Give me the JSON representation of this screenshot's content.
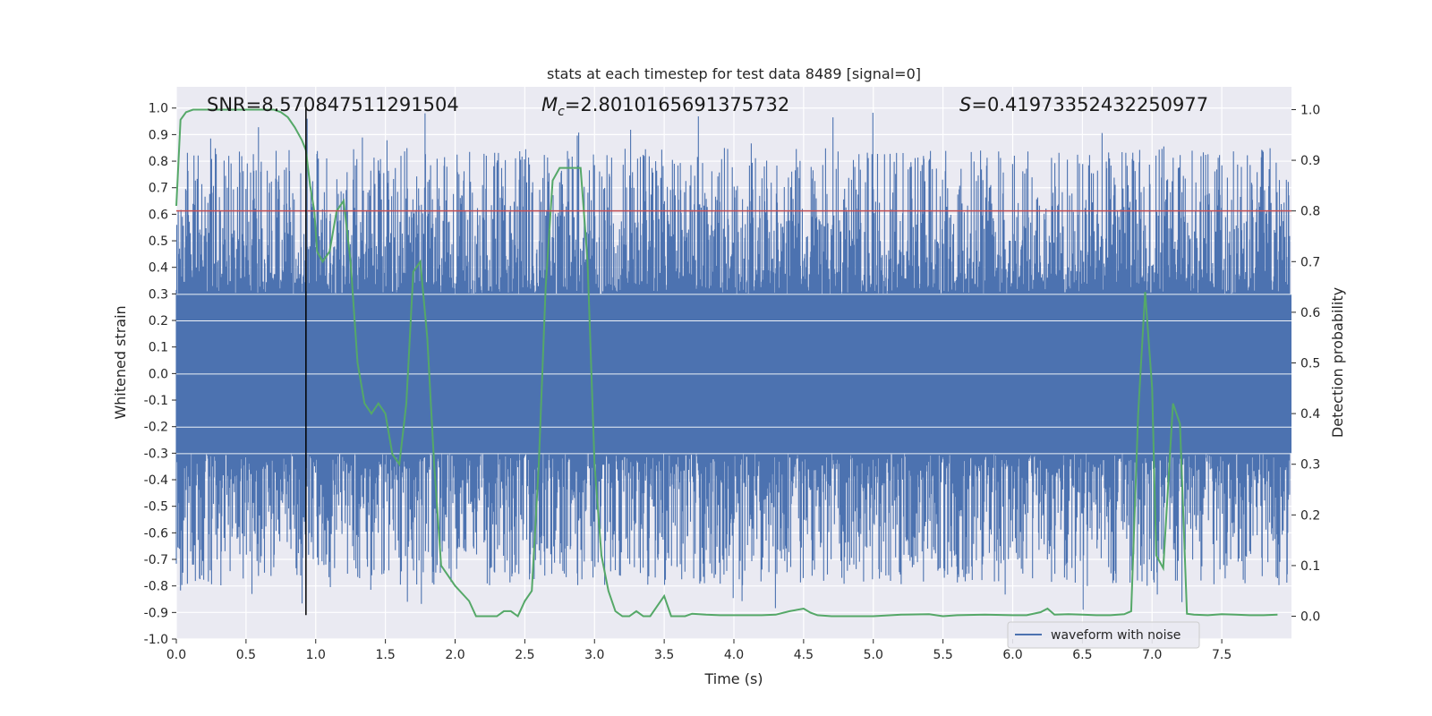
{
  "chart_data": {
    "type": "line",
    "title": "stats at each timestep for test data 8489 [signal=0]",
    "xlabel": "Time (s)",
    "ylabel": "Whitened strain",
    "y2label": "Detection probability",
    "xlim": [
      0,
      8.0
    ],
    "ylim": [
      -1.0,
      1.08
    ],
    "y2lim": [
      -0.045,
      1.045
    ],
    "x_ticks": [
      "0.0",
      "0.5",
      "1.0",
      "1.5",
      "2.0",
      "2.5",
      "3.0",
      "3.5",
      "4.0",
      "4.5",
      "5.0",
      "5.5",
      "6.0",
      "6.5",
      "7.0",
      "7.5"
    ],
    "x_tick_values": [
      0,
      0.5,
      1,
      1.5,
      2,
      2.5,
      3,
      3.5,
      4,
      4.5,
      5,
      5.5,
      6,
      6.5,
      7,
      7.5
    ],
    "y_ticks": [
      "1.0",
      "0.9",
      "0.8",
      "0.7",
      "0.6",
      "0.5",
      "0.4",
      "0.3",
      "0.2",
      "0.1",
      "0.0",
      "-0.1",
      "-0.2",
      "-0.3",
      "-0.4",
      "-0.5",
      "-0.6",
      "-0.7",
      "-0.8",
      "-0.9",
      "-1.0"
    ],
    "y_tick_values": [
      1.0,
      0.9,
      0.8,
      0.7,
      0.6,
      0.5,
      0.4,
      0.3,
      0.2,
      0.1,
      0.0,
      -0.1,
      -0.2,
      -0.3,
      -0.4,
      -0.5,
      -0.6,
      -0.7,
      -0.8,
      -0.9,
      -1.0
    ],
    "y2_ticks": [
      "1.0",
      "0.9",
      "0.8",
      "0.7",
      "0.6",
      "0.5",
      "0.4",
      "0.3",
      "0.2",
      "0.1",
      "0.0"
    ],
    "y2_tick_values": [
      1.0,
      0.9,
      0.8,
      0.7,
      0.6,
      0.5,
      0.4,
      0.3,
      0.2,
      0.1,
      0.0
    ],
    "annotations": {
      "snr": "SNR=8.570847511291504",
      "mc_symbol": "M",
      "mc_subscript": "c",
      "mc_value": "=2.8010165691375732",
      "s_symbol": "S",
      "s_value": "=0.41973352432250977"
    },
    "threshold_y": 0.8,
    "marker_x": 0.93,
    "marker_y_range": [
      -0.91,
      1.0
    ],
    "legend": {
      "label": "waveform with noise",
      "position": "lower-right"
    },
    "grid": true,
    "series": [
      {
        "name": "waveform with noise",
        "axis": "left",
        "style": "noise-band",
        "core_band": [
          -0.3,
          0.3
        ]
      },
      {
        "axis": "right",
        "style": "line",
        "x": [
          0.0,
          0.03,
          0.07,
          0.12,
          0.2,
          0.3,
          0.4,
          0.5,
          0.6,
          0.7,
          0.75,
          0.8,
          0.85,
          0.9,
          0.93,
          0.96,
          0.99,
          1.01,
          1.05,
          1.1,
          1.15,
          1.2,
          1.25,
          1.3,
          1.35,
          1.4,
          1.45,
          1.5,
          1.55,
          1.6,
          1.65,
          1.7,
          1.75,
          1.8,
          1.85,
          1.9,
          2.0,
          2.1,
          2.15,
          2.2,
          2.3,
          2.35,
          2.4,
          2.45,
          2.5,
          2.55,
          2.6,
          2.65,
          2.7,
          2.75,
          2.8,
          2.85,
          2.9,
          2.95,
          3.0,
          3.05,
          3.1,
          3.15,
          3.2,
          3.25,
          3.3,
          3.35,
          3.4,
          3.45,
          3.5,
          3.55,
          3.6,
          3.65,
          3.7,
          3.8,
          3.9,
          4.0,
          4.1,
          4.2,
          4.3,
          4.4,
          4.5,
          4.55,
          4.6,
          4.7,
          5.0,
          5.2,
          5.4,
          5.5,
          5.6,
          5.8,
          6.0,
          6.1,
          6.2,
          6.25,
          6.3,
          6.4,
          6.5,
          6.6,
          6.7,
          6.8,
          6.85,
          6.9,
          6.95,
          7.0,
          7.03,
          7.08,
          7.15,
          7.2,
          7.25,
          7.3,
          7.4,
          7.5,
          7.6,
          7.7,
          7.8,
          7.9
        ],
        "y": [
          0.81,
          0.98,
          0.995,
          1.0,
          1.0,
          1.0,
          1.0,
          1.0,
          1.0,
          1.0,
          0.995,
          0.985,
          0.965,
          0.94,
          0.92,
          0.85,
          0.8,
          0.72,
          0.7,
          0.72,
          0.8,
          0.82,
          0.7,
          0.5,
          0.42,
          0.4,
          0.42,
          0.4,
          0.32,
          0.3,
          0.42,
          0.68,
          0.7,
          0.55,
          0.3,
          0.1,
          0.06,
          0.03,
          0.0,
          0.0,
          0.0,
          0.01,
          0.01,
          0.0,
          0.03,
          0.05,
          0.3,
          0.65,
          0.86,
          0.885,
          0.885,
          0.885,
          0.885,
          0.7,
          0.3,
          0.12,
          0.05,
          0.01,
          0.0,
          0.0,
          0.01,
          0.0,
          0.0,
          0.02,
          0.04,
          0.0,
          0.0,
          0.0,
          0.005,
          0.003,
          0.002,
          0.002,
          0.002,
          0.002,
          0.003,
          0.01,
          0.015,
          0.007,
          0.002,
          0.0,
          0.0,
          0.003,
          0.004,
          0.0,
          0.002,
          0.003,
          0.002,
          0.002,
          0.008,
          0.015,
          0.003,
          0.004,
          0.003,
          0.002,
          0.002,
          0.004,
          0.01,
          0.4,
          0.64,
          0.45,
          0.12,
          0.095,
          0.42,
          0.38,
          0.005,
          0.003,
          0.002,
          0.004,
          0.003,
          0.002,
          0.002,
          0.003
        ]
      }
    ]
  }
}
